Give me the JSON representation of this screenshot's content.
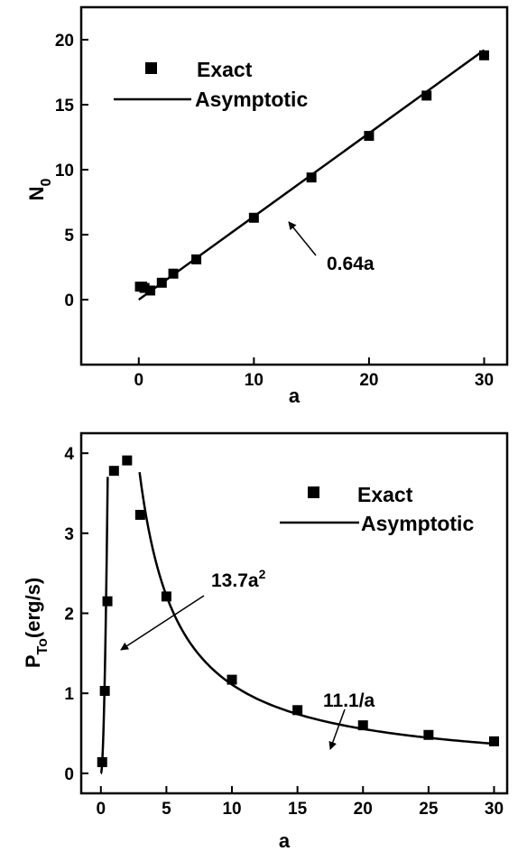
{
  "chart_data": [
    {
      "type": "scatter",
      "xlabel": "a",
      "ylabel": "N",
      "ylabel_subscript": "0",
      "xlim": [
        -5,
        32
      ],
      "ylim": [
        -5,
        22.5
      ],
      "xticks": [
        0,
        10,
        20,
        30
      ],
      "yticks": [
        0,
        5,
        10,
        15,
        20
      ],
      "legend": {
        "position": "top-left",
        "exact_label": "Exact",
        "asymptotic_label": "Asymptotic"
      },
      "series": [
        {
          "name": "Exact",
          "marker": "square",
          "x": [
            0.1,
            0.3,
            0.5,
            1,
            2,
            3,
            5,
            10,
            15,
            20,
            25,
            30
          ],
          "y": [
            1.0,
            1.0,
            0.9,
            0.7,
            1.3,
            2.0,
            3.1,
            6.3,
            9.4,
            12.6,
            15.7,
            18.8
          ]
        },
        {
          "name": "Asymptotic",
          "style": "line",
          "formula": "0.64a",
          "x": [
            0,
            30
          ],
          "y": [
            0,
            19.2
          ]
        }
      ],
      "annotations": [
        {
          "text": "0.64a",
          "points_to": {
            "x": 13.5,
            "y": 9.0
          }
        }
      ]
    },
    {
      "type": "scatter",
      "xlabel": "a",
      "ylabel": "P",
      "ylabel_subscript": "To",
      "ylabel_suffix": "(erg/s)",
      "xlim": [
        -1.5,
        31
      ],
      "ylim": [
        -0.25,
        4.25
      ],
      "xticks": [
        0,
        5,
        10,
        15,
        20,
        25,
        30
      ],
      "yticks": [
        0,
        1,
        2,
        3,
        4
      ],
      "legend": {
        "position": "top-right",
        "exact_label": "Exact",
        "asymptotic_label": "Asymptotic"
      },
      "series": [
        {
          "name": "Exact",
          "marker": "square",
          "x": [
            0.1,
            0.3,
            0.5,
            1,
            2,
            3,
            5,
            10,
            15,
            20,
            25,
            30
          ],
          "y": [
            0.14,
            1.03,
            2.15,
            3.78,
            3.91,
            3.23,
            2.21,
            1.17,
            0.79,
            0.6,
            0.48,
            0.4
          ]
        },
        {
          "name": "Asymptotic",
          "style": "line",
          "segments": [
            {
              "formula": "13.7a^2",
              "x_range": [
                0,
                0.52
              ]
            },
            {
              "formula": "11.1/a",
              "x_range": [
                2.95,
                30
              ]
            }
          ]
        }
      ],
      "annotations": [
        {
          "text": "13.7a",
          "superscript": "2",
          "points_to": {
            "x": 0.55,
            "y": 1.55
          }
        },
        {
          "text": "11.1/a",
          "points_to": {
            "x": 16.8,
            "y": 0.62
          }
        }
      ]
    }
  ]
}
